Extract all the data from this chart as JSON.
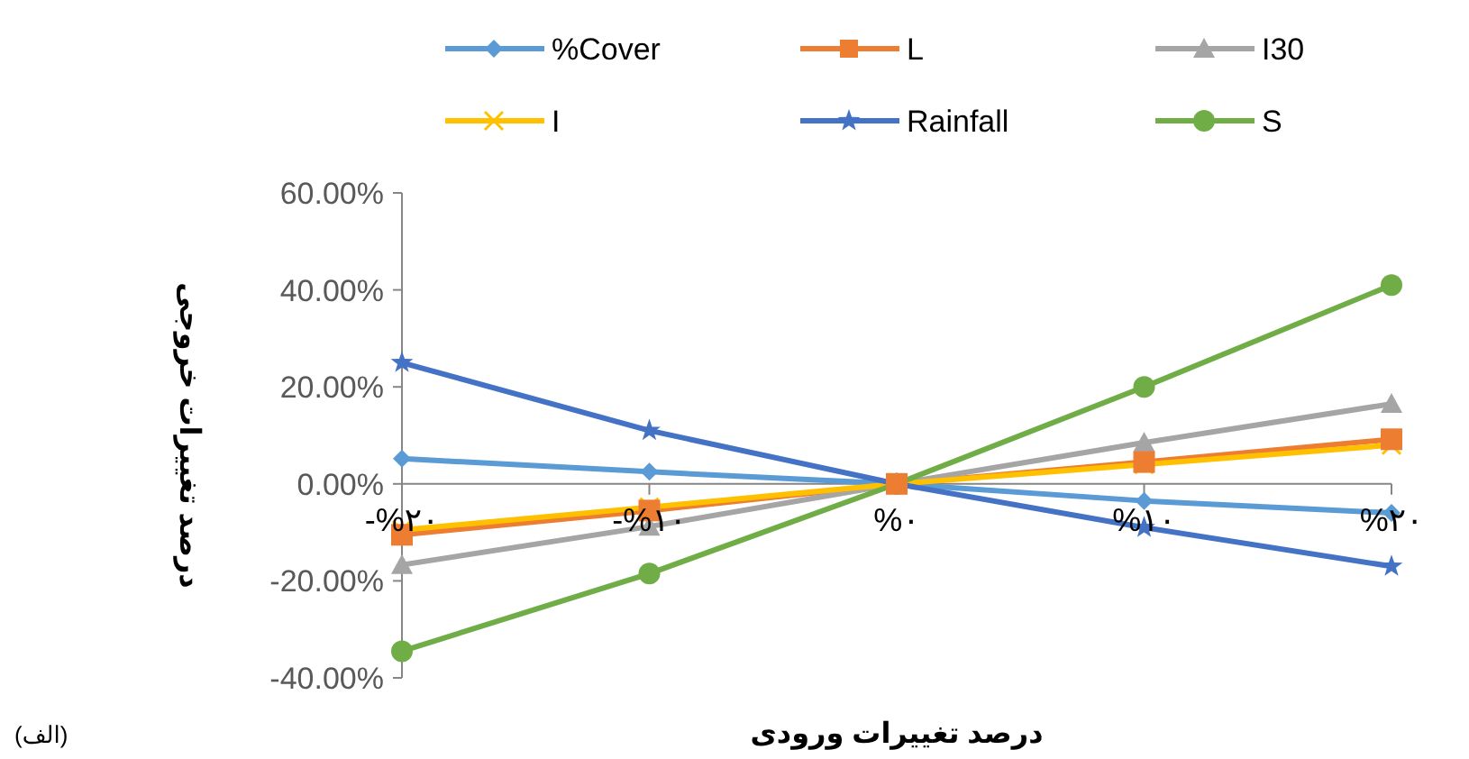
{
  "chart_data": {
    "type": "line",
    "xlabel": "درصد تغییرات ورودی",
    "ylabel": "درصد تغییرات خروجی",
    "categories": [
      "-%۲۰",
      "-%۱۰",
      "%۰",
      "%۱۰",
      "%۲۰"
    ],
    "ylim": [
      -40,
      60
    ],
    "yticks": [
      {
        "value": -40,
        "label": "-40.00%"
      },
      {
        "value": -20,
        "label": "-20.00%"
      },
      {
        "value": 0,
        "label": "0.00%"
      },
      {
        "value": 20,
        "label": "20.00%"
      },
      {
        "value": 40,
        "label": "40.00%"
      },
      {
        "value": 60,
        "label": "60.00%"
      }
    ],
    "grid": false,
    "legend": "top",
    "series": [
      {
        "name": "%Cover",
        "color": "#5b9bd5",
        "marker": "diamond",
        "values": [
          5.2,
          2.5,
          0,
          -3.5,
          -6
        ]
      },
      {
        "name": "L",
        "color": "#ed7d31",
        "marker": "square",
        "values": [
          -10.5,
          -5.5,
          0,
          4.5,
          9.2
        ]
      },
      {
        "name": "I30",
        "color": "#a5a5a5",
        "marker": "triangle",
        "values": [
          -16.7,
          -8.8,
          0,
          8.5,
          16.5
        ]
      },
      {
        "name": "I",
        "color": "#ffc000",
        "marker": "cross",
        "values": [
          -9.5,
          -4.8,
          0,
          4,
          8
        ]
      },
      {
        "name": "Rainfall",
        "color": "#4472c4",
        "marker": "star",
        "values": [
          25,
          11,
          0,
          -9,
          -17
        ]
      },
      {
        "name": "S",
        "color": "#70ad47",
        "marker": "circle",
        "values": [
          -34.5,
          -18.5,
          0,
          20,
          41
        ]
      }
    ],
    "annotations": [
      "(الف)"
    ]
  }
}
